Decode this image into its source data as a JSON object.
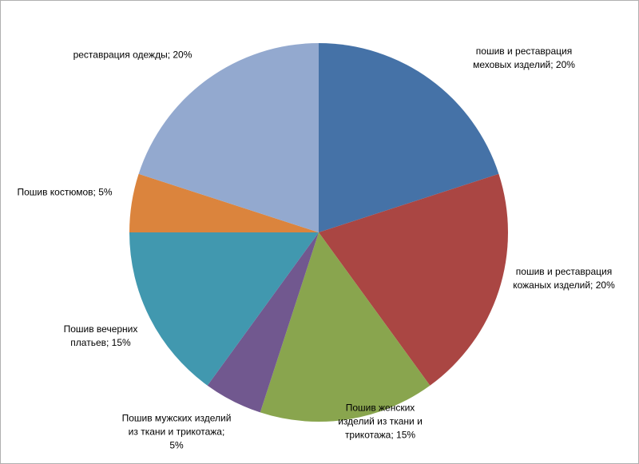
{
  "chart_data": {
    "type": "pie",
    "categories": [
      "пошив и реставрация меховых изделий;",
      "пошив и реставрация кожаных изделий;",
      "Пошив женских изделий из ткани и трикотажа;",
      "Пошив мужских изделий из ткани и трикотажа;",
      "Пошив вечерних платьев;",
      "Пошив костюмов;",
      "реставрация одежды;"
    ],
    "values": [
      20,
      20,
      15,
      5,
      15,
      5,
      20
    ],
    "value_labels": [
      "20%",
      "20%",
      "15%",
      "5%",
      "15%",
      "5%",
      "20%"
    ],
    "colors": [
      "#4572a7",
      "#aa4643",
      "#89a54e",
      "#71588f",
      "#4198af",
      "#db843d",
      "#93a9cf"
    ]
  }
}
